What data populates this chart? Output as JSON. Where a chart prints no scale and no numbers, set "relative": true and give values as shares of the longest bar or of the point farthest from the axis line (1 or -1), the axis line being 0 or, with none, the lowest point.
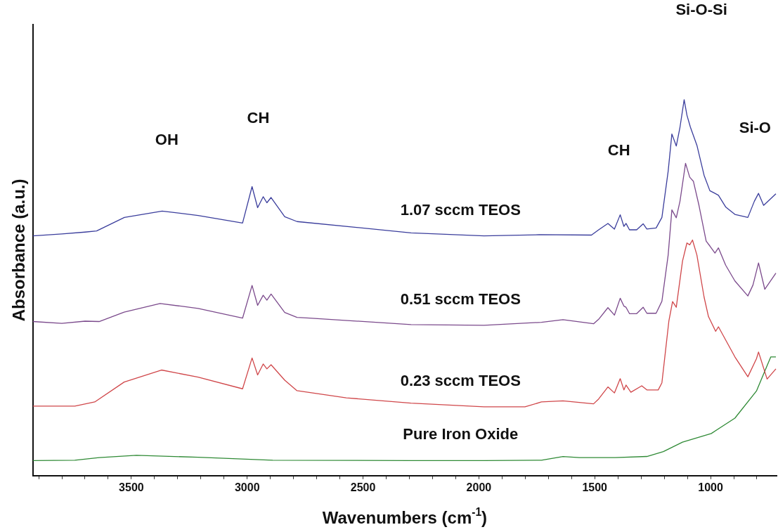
{
  "chart_data": {
    "type": "line",
    "xlabel": "Wavenumbers (cm$^{-1}$)",
    "ylabel": "Absorbance (a.u.)",
    "relative": true,
    "legend": false,
    "grid": false,
    "marker": "none",
    "line_style": "solid",
    "xlim": [
      3925,
      715
    ],
    "xticks": [
      {
        "value": 3900,
        "label": null
      },
      {
        "value": 3800,
        "label": null
      },
      {
        "value": 3700,
        "label": null
      },
      {
        "value": 3600,
        "label": null
      },
      3500,
      {
        "value": 3400,
        "label": null
      },
      {
        "value": 3300,
        "label": null
      },
      {
        "value": 3200,
        "label": null
      },
      {
        "value": 3100,
        "label": null
      },
      3000,
      {
        "value": 2900,
        "label": null
      },
      {
        "value": 2800,
        "label": null
      },
      {
        "value": 2700,
        "label": null
      },
      {
        "value": 2600,
        "label": null
      },
      2500,
      {
        "value": 2400,
        "label": null
      },
      {
        "value": 2300,
        "label": null
      },
      {
        "value": 2200,
        "label": null
      },
      {
        "value": 2100,
        "label": null
      },
      2000,
      {
        "value": 1900,
        "label": null
      },
      {
        "value": 1800,
        "label": null
      },
      {
        "value": 1700,
        "label": null
      },
      {
        "value": 1600,
        "label": null
      },
      1500,
      {
        "value": 1400,
        "label": null
      },
      {
        "value": 1300,
        "label": null
      },
      {
        "value": 1200,
        "label": null
      },
      {
        "value": 1100,
        "label": null
      },
      1000,
      {
        "value": 900,
        "label": null
      },
      {
        "value": 800,
        "label": null
      }
    ],
    "annotations": [
      "OH",
      "CH",
      "CH",
      "Si-O-Si",
      "Si-O"
    ],
    "series": [
      {
        "name": "1.07 sccm TEOS",
        "color": "#3a3d9c",
        "x": [
          3925,
          3800,
          3700,
          3650,
          3530,
          3367,
          3212,
          3020,
          2979,
          2955,
          2931,
          2915,
          2897,
          2838,
          2785,
          2293,
          1978,
          1740,
          1514,
          1483,
          1443,
          1415,
          1390,
          1374,
          1365,
          1350,
          1319,
          1291,
          1275,
          1235,
          1210,
          1183,
          1167,
          1148,
          1132,
          1114,
          1102,
          1087,
          1059,
          1028,
          1003,
          981,
          966,
          935,
          895,
          839,
          811,
          793,
          771,
          718
        ],
        "values": [
          0.638,
          0.643,
          0.648,
          0.651,
          0.687,
          0.704,
          0.692,
          0.672,
          0.769,
          0.713,
          0.742,
          0.726,
          0.74,
          0.689,
          0.676,
          0.646,
          0.638,
          0.641,
          0.64,
          0.654,
          0.671,
          0.656,
          0.694,
          0.663,
          0.671,
          0.654,
          0.654,
          0.67,
          0.656,
          0.659,
          0.687,
          0.81,
          0.909,
          0.877,
          0.927,
          1.0,
          0.959,
          0.927,
          0.879,
          0.799,
          0.758,
          0.751,
          0.746,
          0.715,
          0.695,
          0.687,
          0.73,
          0.751,
          0.719,
          0.75
        ]
      },
      {
        "name": "0.51 sccm TEOS",
        "color": "#7b4a8c",
        "x": [
          3925,
          3800,
          3700,
          3639,
          3531,
          3376,
          3212,
          3020,
          2979,
          2955,
          2931,
          2915,
          2897,
          2838,
          2785,
          2731,
          2293,
          1978,
          1730,
          1637,
          1505,
          1483,
          1443,
          1415,
          1390,
          1374,
          1365,
          1350,
          1319,
          1291,
          1275,
          1235,
          1210,
          1183,
          1167,
          1148,
          1132,
          1108,
          1090,
          1074,
          1050,
          1019,
          1003,
          981,
          966,
          935,
          895,
          839,
          817,
          793,
          766,
          718
        ],
        "values": [
          0.41,
          0.405,
          0.411,
          0.41,
          0.435,
          0.458,
          0.445,
          0.419,
          0.506,
          0.453,
          0.48,
          0.467,
          0.483,
          0.434,
          0.421,
          0.419,
          0.402,
          0.4,
          0.408,
          0.415,
          0.404,
          0.416,
          0.447,
          0.427,
          0.472,
          0.451,
          0.448,
          0.431,
          0.431,
          0.448,
          0.432,
          0.432,
          0.464,
          0.587,
          0.707,
          0.686,
          0.73,
          0.831,
          0.794,
          0.783,
          0.719,
          0.624,
          0.611,
          0.592,
          0.606,
          0.56,
          0.518,
          0.478,
          0.507,
          0.566,
          0.496,
          0.539
        ]
      },
      {
        "name": "0.23 sccm TEOS",
        "color": "#d0474a",
        "x": [
          3925,
          3744,
          3658,
          3531,
          3370,
          3212,
          3020,
          2979,
          2955,
          2931,
          2915,
          2897,
          2838,
          2785,
          2572,
          2293,
          1978,
          1801,
          1730,
          1637,
          1505,
          1483,
          1443,
          1415,
          1390,
          1374,
          1365,
          1344,
          1297,
          1275,
          1226,
          1210,
          1180,
          1164,
          1148,
          1121,
          1102,
          1090,
          1078,
          1059,
          1028,
          1009,
          978,
          966,
          895,
          839,
          802,
          793,
          756,
          718
        ],
        "values": [
          0.185,
          0.185,
          0.196,
          0.249,
          0.281,
          0.262,
          0.231,
          0.313,
          0.268,
          0.297,
          0.284,
          0.295,
          0.254,
          0.226,
          0.207,
          0.193,
          0.183,
          0.183,
          0.196,
          0.199,
          0.191,
          0.204,
          0.236,
          0.22,
          0.258,
          0.228,
          0.241,
          0.222,
          0.239,
          0.228,
          0.228,
          0.247,
          0.411,
          0.463,
          0.448,
          0.571,
          0.619,
          0.614,
          0.627,
          0.587,
          0.475,
          0.423,
          0.384,
          0.396,
          0.316,
          0.263,
          0.311,
          0.329,
          0.257,
          0.284
        ]
      },
      {
        "name": "Pure Iron Oxide",
        "color": "#2f8a35",
        "x": [
          3925,
          3744,
          3639,
          3478,
          3212,
          2890,
          2293,
          1978,
          1730,
          1637,
          1566,
          1412,
          1275,
          1204,
          1121,
          997,
          895,
          802,
          762,
          740,
          718
        ],
        "values": [
          0.04,
          0.041,
          0.048,
          0.054,
          0.049,
          0.041,
          0.04,
          0.04,
          0.041,
          0.051,
          0.048,
          0.048,
          0.051,
          0.064,
          0.089,
          0.112,
          0.153,
          0.225,
          0.284,
          0.316,
          0.316
        ]
      }
    ]
  }
}
